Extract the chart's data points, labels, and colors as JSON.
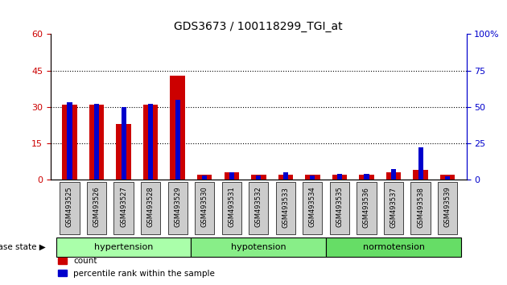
{
  "title": "GDS3673 / 100118299_TGI_at",
  "samples": [
    "GSM493525",
    "GSM493526",
    "GSM493527",
    "GSM493528",
    "GSM493529",
    "GSM493530",
    "GSM493531",
    "GSM493532",
    "GSM493533",
    "GSM493534",
    "GSM493535",
    "GSM493536",
    "GSM493537",
    "GSM493538",
    "GSM493539"
  ],
  "count": [
    31,
    31,
    23,
    31,
    43,
    2,
    3,
    2,
    2,
    2,
    2,
    2,
    3,
    4,
    2
  ],
  "percentile": [
    53,
    52,
    50,
    52,
    55,
    3,
    5,
    3,
    5,
    3,
    4,
    4,
    7,
    22,
    2
  ],
  "groups": [
    {
      "label": "hypertension",
      "start": 0,
      "end": 5,
      "color": "#aaffaa"
    },
    {
      "label": "hypotension",
      "start": 5,
      "end": 10,
      "color": "#88ee88"
    },
    {
      "label": "normotension",
      "start": 10,
      "end": 15,
      "color": "#66dd66"
    }
  ],
  "ylim_left": [
    0,
    60
  ],
  "ylim_right": [
    0,
    100
  ],
  "yticks_left": [
    0,
    15,
    30,
    45,
    60
  ],
  "yticks_right": [
    0,
    25,
    50,
    75,
    100
  ],
  "red_bar_width": 0.55,
  "blue_bar_width": 0.18,
  "count_color": "#cc0000",
  "percentile_color": "#0000cc",
  "bg_color": "#ffffff",
  "label_color_left": "#cc0000",
  "label_color_right": "#0000cc",
  "tick_box_color": "#cccccc"
}
